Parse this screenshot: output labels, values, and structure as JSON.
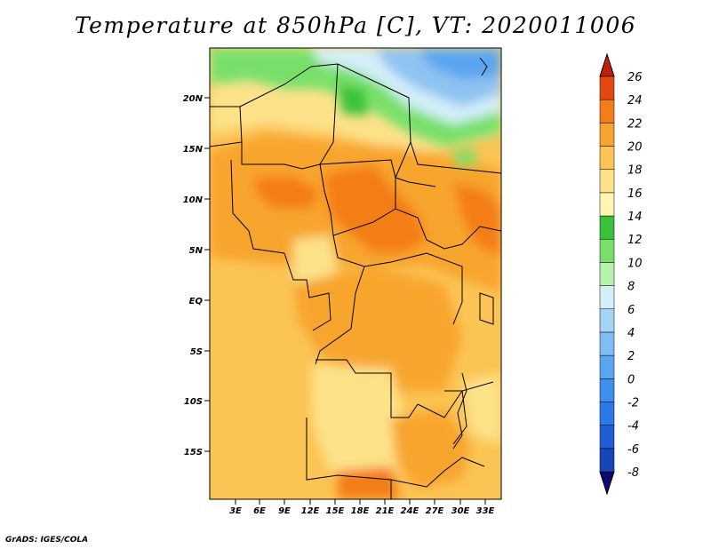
{
  "title": "Temperature at 850hPa [C], VT: 2020011006",
  "credit": "GrADS: IGES/COLA",
  "map": {
    "variable": "Temperature at 850hPa",
    "units": "C",
    "valid_time": "2020011006",
    "lon_range": [
      0,
      34
    ],
    "lat_range": [
      -20,
      25
    ],
    "x_ticks": [
      "3E",
      "6E",
      "9E",
      "12E",
      "15E",
      "18E",
      "21E",
      "24E",
      "27E",
      "30E",
      "33E"
    ],
    "y_ticks": [
      "20N",
      "15N",
      "10N",
      "5N",
      "EQ",
      "5S",
      "10S",
      "15S"
    ]
  },
  "colorbar": {
    "levels": [
      "-8",
      "-6",
      "-4",
      "-2",
      "0",
      "2",
      "4",
      "6",
      "8",
      "10",
      "12",
      "14",
      "16",
      "18",
      "20",
      "22",
      "24",
      "26"
    ],
    "colors": [
      "#0b0b6e",
      "#1846b8",
      "#1e5fd6",
      "#2c79e8",
      "#3d8fee",
      "#5aa5f0",
      "#7fbdf5",
      "#a6d4f7",
      "#d4eefa",
      "#b6f2ac",
      "#78e06a",
      "#37c23a",
      "#fff5b5",
      "#fde28a",
      "#fbc454",
      "#f8a52f",
      "#f47d18",
      "#e2480f",
      "#c0200f"
    ]
  },
  "regions": [
    {
      "name": "region-cool-northeast",
      "color": "#8fc3f2"
    },
    {
      "name": "region-cool-north-strip",
      "color": "#d4eefa"
    },
    {
      "name": "region-green-north",
      "color": "#78e06a"
    },
    {
      "name": "region-hot-sudan-chad",
      "color": "#f47d18"
    },
    {
      "name": "region-hot-ethiopia",
      "color": "#f47d18"
    },
    {
      "name": "region-mild-angola",
      "color": "#fde28a"
    },
    {
      "name": "region-hot-south",
      "color": "#f47d18"
    }
  ]
}
